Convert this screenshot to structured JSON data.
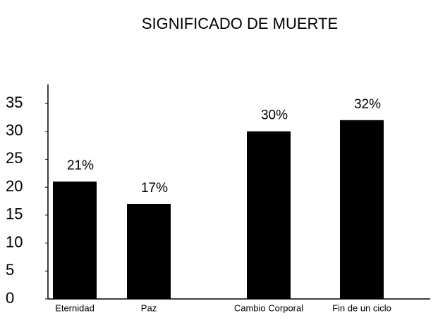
{
  "chart_data": {
    "type": "bar",
    "title": "SIGNIFICADO DE MUERTE",
    "categories": [
      "Eternidad",
      "Paz",
      "Cambio Corporal",
      "Fin de un ciclo"
    ],
    "values": [
      21,
      17,
      30,
      32
    ],
    "value_labels": [
      "21%",
      "17%",
      "30%",
      "32%"
    ],
    "color": "#000000",
    "ylim": [
      0,
      35
    ],
    "yticks": [
      0,
      5,
      10,
      15,
      20,
      25,
      30,
      35
    ],
    "grid": false
  }
}
